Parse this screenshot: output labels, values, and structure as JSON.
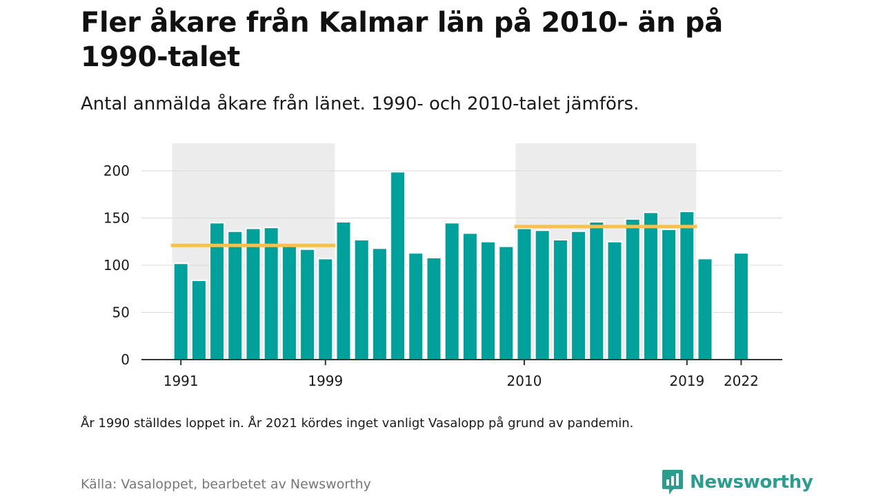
{
  "title": "Fler åkare från Kalmar län på 2010- än på 1990-talet",
  "subtitle": "Antal anmälda åkare från länet. 1990- och 2010-talet jämförs.",
  "note": "År 1990 ställdes loppet in. År 2021 kördes inget vanligt Vasalopp på grund av pandemin.",
  "source": "Källa: Vasaloppet, bearbetet av Newsworthy",
  "logo": {
    "text": "Newsworthy",
    "icon": "newsworthy-logo-icon"
  },
  "colors": {
    "bar": "#00a19a",
    "average_line": "#f7c14f",
    "decade_band": "#ececec",
    "grid": "#d9d9d9"
  },
  "chart_data": {
    "type": "bar",
    "title": "Fler åkare från Kalmar län på 2010- än på 1990-talet",
    "subtitle": "Antal anmälda åkare från länet. 1990- och 2010-talet jämförs.",
    "xlabel": "",
    "ylabel": "",
    "ylim": [
      0,
      200
    ],
    "yticks": [
      0,
      50,
      100,
      150,
      200
    ],
    "xticks": [
      1991,
      1999,
      2010,
      2019,
      2022
    ],
    "grid": true,
    "x": [
      1991,
      1992,
      1993,
      1994,
      1995,
      1996,
      1997,
      1998,
      1999,
      2000,
      2001,
      2002,
      2003,
      2004,
      2005,
      2006,
      2007,
      2008,
      2009,
      2010,
      2011,
      2012,
      2013,
      2014,
      2015,
      2016,
      2017,
      2018,
      2019,
      2020,
      2022
    ],
    "values": [
      102,
      84,
      145,
      136,
      139,
      140,
      121,
      117,
      107,
      146,
      127,
      118,
      199,
      113,
      108,
      145,
      134,
      125,
      120,
      139,
      137,
      127,
      136,
      146,
      125,
      149,
      156,
      138,
      157,
      107,
      113
    ],
    "highlight_ranges": [
      [
        1991,
        1999
      ],
      [
        2010,
        2019
      ]
    ],
    "averages": [
      {
        "from": 1991,
        "to": 1999,
        "value": 121
      },
      {
        "from": 2010,
        "to": 2019,
        "value": 141
      }
    ]
  }
}
